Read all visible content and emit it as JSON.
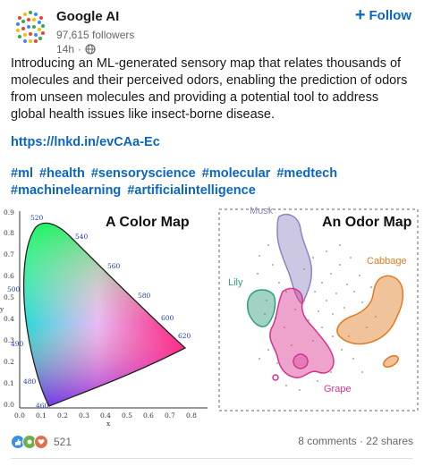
{
  "post": {
    "author": "Google AI",
    "followers": "97,615 followers",
    "time": "14h",
    "follow_label": "Follow",
    "body": "Introducing an ML-generated sensory map that relates thousands of molecules and their perceived odors, enabling the prediction of odors from unseen molecules and providing a potential tool to address global health issues like insect-borne disease.",
    "link": "https://lnkd.in/evCAa-Ec",
    "hashtags": [
      "#ml",
      "#health",
      "#sensoryscience",
      "#molecular",
      "#medtech",
      "#machinelearning",
      "#artificialintelligence"
    ]
  },
  "figure": {
    "left_title": "A Color Map",
    "right_title": "An Odor Map",
    "wavelength_labels": [
      "520",
      "540",
      "560",
      "580",
      "600",
      "620",
      "500",
      "490",
      "480",
      "460"
    ],
    "y_ticks": [
      "0.9",
      "0.8",
      "0.7",
      "0.6",
      "0.5",
      "0.4",
      "0.3",
      "0.2",
      "0.1",
      "0.0"
    ],
    "x_ticks": [
      "0.0",
      "0.1",
      "0.2",
      "0.3",
      "0.4",
      "0.5",
      "0.6",
      "0.7",
      "0.8"
    ],
    "x_axis": "x",
    "y_axis": "y",
    "odor_labels": {
      "musk": "Musk",
      "cabbage": "Cabbage",
      "lily": "Lily",
      "grape": "Grape"
    },
    "colors": {
      "musk": "#8f83c2",
      "cabbage": "#e07a20",
      "lily": "#2e9e7e",
      "grape": "#d6338f"
    }
  },
  "social": {
    "reactions": "521",
    "comments": "8 comments",
    "reposts": "22 shares"
  }
}
